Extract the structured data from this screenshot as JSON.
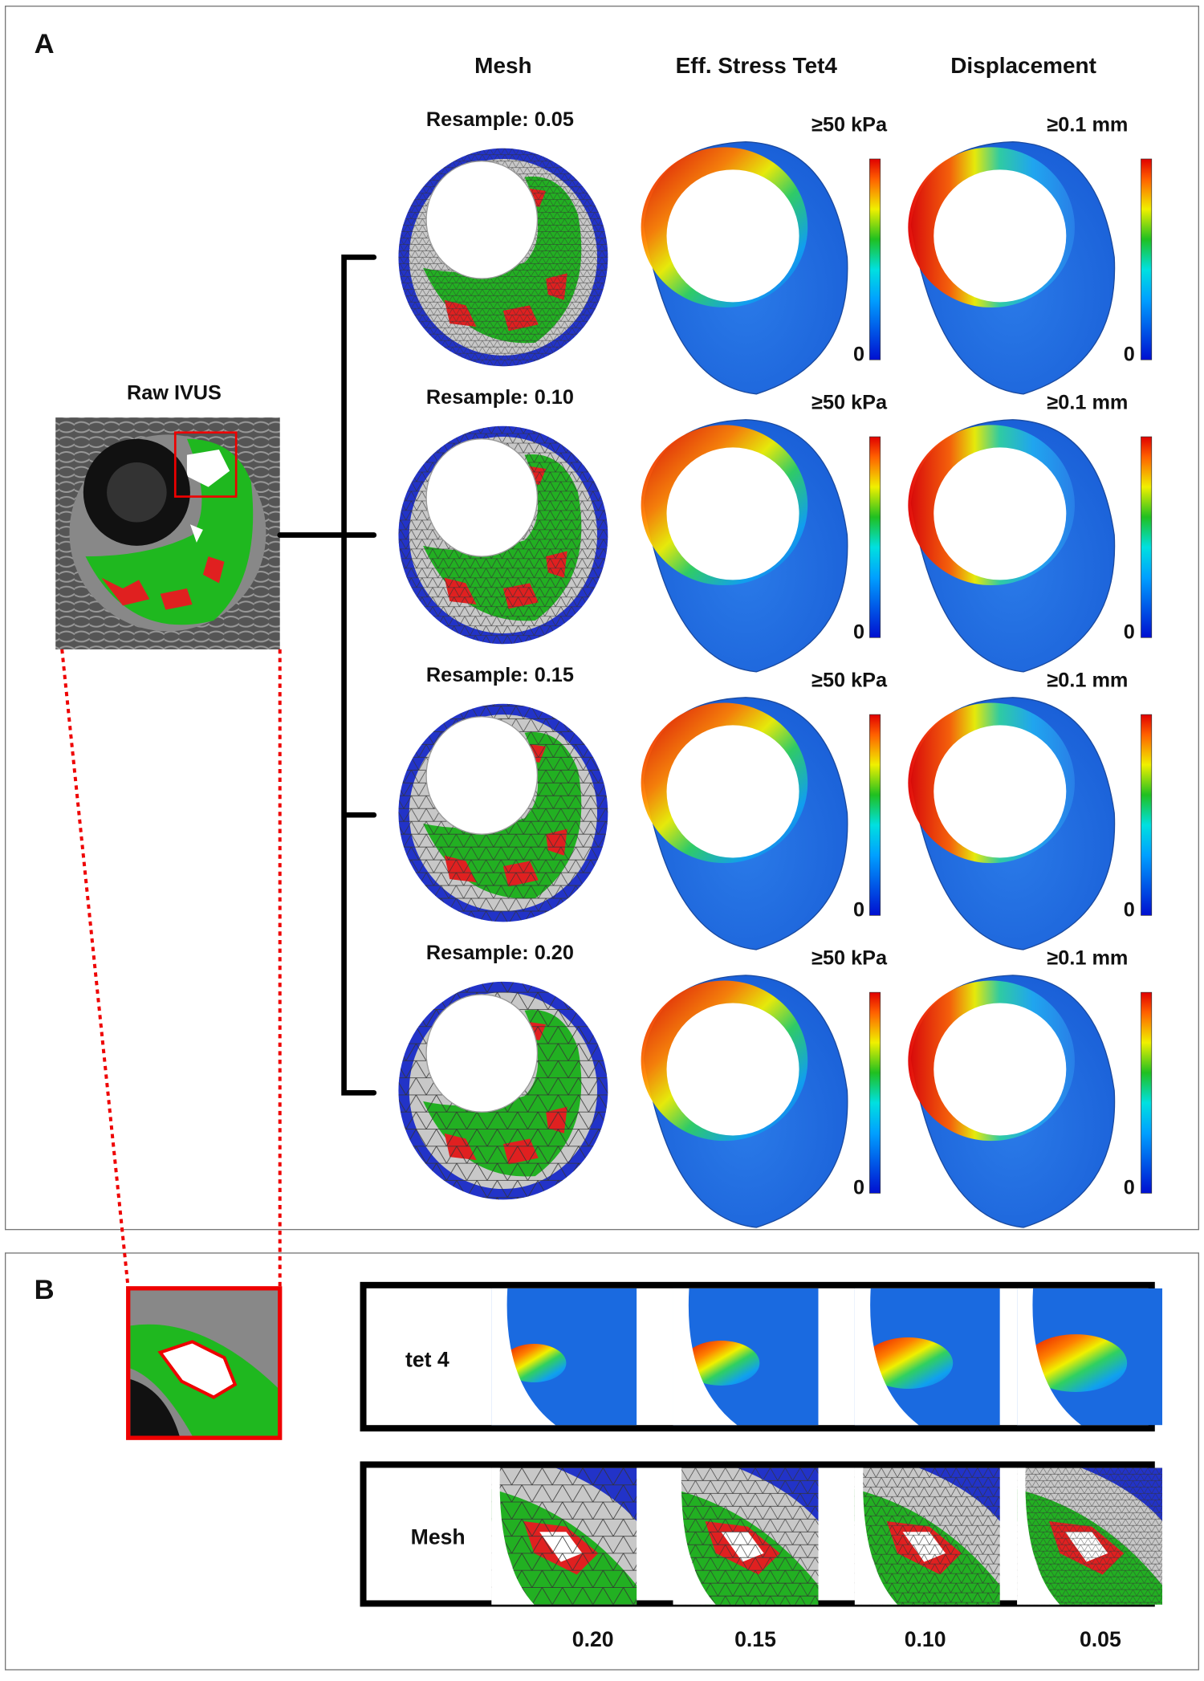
{
  "panel_a": {
    "label": "A",
    "column_headers": [
      "Mesh",
      "Eff. Stress Tet4",
      "Displacement"
    ],
    "raw_label": "Raw IVUS",
    "rows": [
      {
        "resample": "Resample: 0.05",
        "stress_max": "≥50 kPa",
        "stress_min": "0",
        "disp_max": "≥0.1 mm",
        "disp_min": "0"
      },
      {
        "resample": "Resample: 0.10",
        "stress_max": "≥50 kPa",
        "stress_min": "0",
        "disp_max": "≥0.1 mm",
        "disp_min": "0"
      },
      {
        "resample": "Resample: 0.15",
        "stress_max": "≥50 kPa",
        "stress_min": "0",
        "disp_max": "≥0.1 mm",
        "disp_min": "0"
      },
      {
        "resample": "Resample: 0.20",
        "stress_max": "≥50 kPa",
        "stress_min": "0",
        "disp_max": "≥0.1 mm",
        "disp_min": "0"
      }
    ]
  },
  "panel_b": {
    "label": "B",
    "rows": [
      "tet 4",
      "Mesh"
    ],
    "resample_values": [
      "0.20",
      "0.15",
      "0.10",
      "0.05"
    ]
  }
}
